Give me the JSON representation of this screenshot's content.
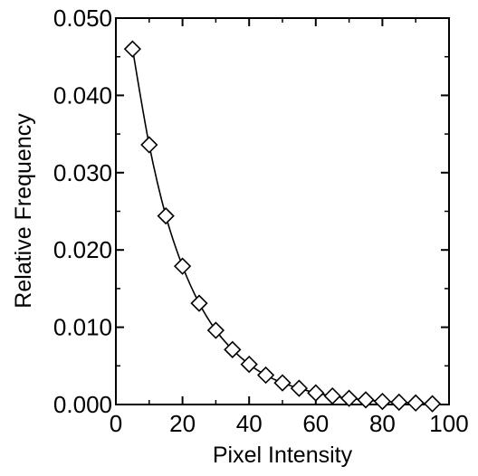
{
  "chart_data": {
    "type": "scatter",
    "title": "",
    "xlabel": "Pixel Intensity",
    "ylabel": "Relative Frequency",
    "xlim": [
      0,
      100
    ],
    "ylim": [
      0,
      0.05
    ],
    "x_ticks": [
      "0",
      "20",
      "40",
      "60",
      "80",
      "100"
    ],
    "y_ticks": [
      "0.000",
      "0.010",
      "0.020",
      "0.030",
      "0.040",
      "0.050"
    ],
    "grid": false,
    "marker": "diamond",
    "fit_line": true,
    "x": [
      5,
      10,
      15,
      20,
      25,
      30,
      35,
      40,
      45,
      50,
      55,
      60,
      65,
      70,
      75,
      80,
      85,
      90,
      95
    ],
    "values": [
      0.046,
      0.0336,
      0.0244,
      0.0179,
      0.0131,
      0.0096,
      0.0071,
      0.0052,
      0.0038,
      0.0028,
      0.0021,
      0.0015,
      0.0011,
      0.0008,
      0.0006,
      0.0004,
      0.0003,
      0.0002,
      0.0001
    ]
  }
}
